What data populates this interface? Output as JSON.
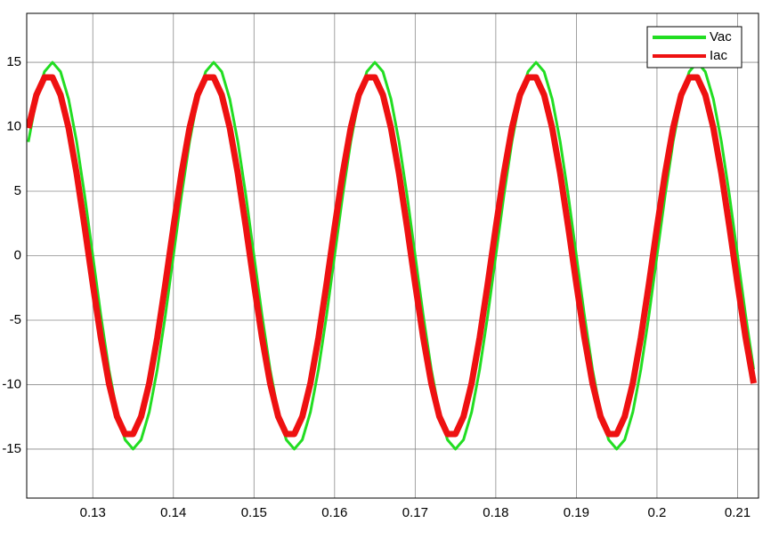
{
  "chart_data": {
    "type": "line",
    "x": [
      0.122,
      0.123,
      0.124,
      0.125,
      0.126,
      0.127,
      0.128,
      0.129,
      0.13,
      0.131,
      0.132,
      0.133,
      0.134,
      0.135,
      0.136,
      0.137,
      0.138,
      0.139,
      0.14,
      0.141,
      0.142,
      0.143,
      0.144,
      0.145,
      0.146,
      0.147,
      0.148,
      0.149,
      0.15,
      0.151,
      0.152,
      0.153,
      0.154,
      0.155,
      0.156,
      0.157,
      0.158,
      0.159,
      0.16,
      0.161,
      0.162,
      0.163,
      0.164,
      0.165,
      0.166,
      0.167,
      0.168,
      0.169,
      0.17,
      0.171,
      0.172,
      0.173,
      0.174,
      0.175,
      0.176,
      0.177,
      0.178,
      0.179,
      0.18,
      0.181,
      0.182,
      0.183,
      0.184,
      0.185,
      0.186,
      0.187,
      0.188,
      0.189,
      0.19,
      0.191,
      0.192,
      0.193,
      0.194,
      0.195,
      0.196,
      0.197,
      0.198,
      0.199,
      0.2,
      0.201,
      0.202,
      0.203,
      0.204,
      0.205,
      0.206,
      0.207,
      0.208,
      0.209,
      0.21,
      0.211,
      0.212
    ],
    "series": [
      {
        "name": "Vac",
        "color": "#22dd22",
        "values": [
          8.82,
          12.14,
          14.27,
          15,
          14.27,
          12.14,
          8.82,
          4.64,
          0,
          -4.64,
          -8.82,
          -12.14,
          -14.27,
          -15,
          -14.27,
          -12.14,
          -8.82,
          -4.64,
          0,
          4.64,
          8.82,
          12.14,
          14.27,
          15,
          14.27,
          12.14,
          8.82,
          4.64,
          0,
          -4.64,
          -8.82,
          -12.14,
          -14.27,
          -15,
          -14.27,
          -12.14,
          -8.82,
          -4.64,
          0,
          4.64,
          8.82,
          12.14,
          14.27,
          15,
          14.27,
          12.14,
          8.82,
          4.64,
          0,
          -4.64,
          -8.82,
          -12.14,
          -14.27,
          -15,
          -14.27,
          -12.14,
          -8.82,
          -4.64,
          0,
          4.64,
          8.82,
          12.14,
          14.27,
          15,
          14.27,
          12.14,
          8.82,
          4.64,
          0,
          -4.64,
          -8.82,
          -12.14,
          -14.27,
          -15,
          -14.27,
          -12.14,
          -8.82,
          -4.64,
          0,
          4.64,
          8.82,
          12.14,
          14.27,
          15,
          14.27,
          12.14,
          8.82,
          4.64,
          0,
          -4.64,
          -8.82
        ]
      },
      {
        "name": "Iac",
        "color": "#ee1111",
        "values": [
          9.9,
          12.47,
          13.83,
          13.83,
          12.47,
          9.9,
          6.36,
          2.19,
          -2.19,
          -6.36,
          -9.9,
          -12.47,
          -13.83,
          -13.83,
          -12.47,
          -9.9,
          -6.36,
          -2.19,
          2.19,
          6.36,
          9.9,
          12.47,
          13.83,
          13.83,
          12.47,
          9.9,
          6.36,
          2.19,
          -2.19,
          -6.36,
          -9.9,
          -12.47,
          -13.83,
          -13.83,
          -12.47,
          -9.9,
          -6.36,
          -2.19,
          2.19,
          6.36,
          9.9,
          12.47,
          13.83,
          13.83,
          12.47,
          9.9,
          6.36,
          2.19,
          -2.19,
          -6.36,
          -9.9,
          -12.47,
          -13.83,
          -13.83,
          -12.47,
          -9.9,
          -6.36,
          -2.19,
          2.19,
          6.36,
          9.9,
          12.47,
          13.83,
          13.83,
          12.47,
          9.9,
          6.36,
          2.19,
          -2.19,
          -6.36,
          -9.9,
          -12.47,
          -13.83,
          -13.83,
          -12.47,
          -9.9,
          -6.36,
          -2.19,
          2.19,
          6.36,
          9.9,
          12.47,
          13.83,
          13.83,
          12.47,
          9.9,
          6.36,
          2.19,
          -2.19,
          -6.36,
          -9.9
        ]
      }
    ],
    "xlim": [
      0.1218,
      0.2126
    ],
    "xticks": [
      0.13,
      0.14,
      0.15,
      0.16,
      0.17,
      0.18,
      0.19,
      0.2,
      0.21
    ],
    "ylim": [
      -18.8,
      18.8
    ],
    "yticks": [
      -15,
      -10,
      -5,
      0,
      5,
      10,
      15
    ],
    "grid": true,
    "legend": "upper right"
  }
}
